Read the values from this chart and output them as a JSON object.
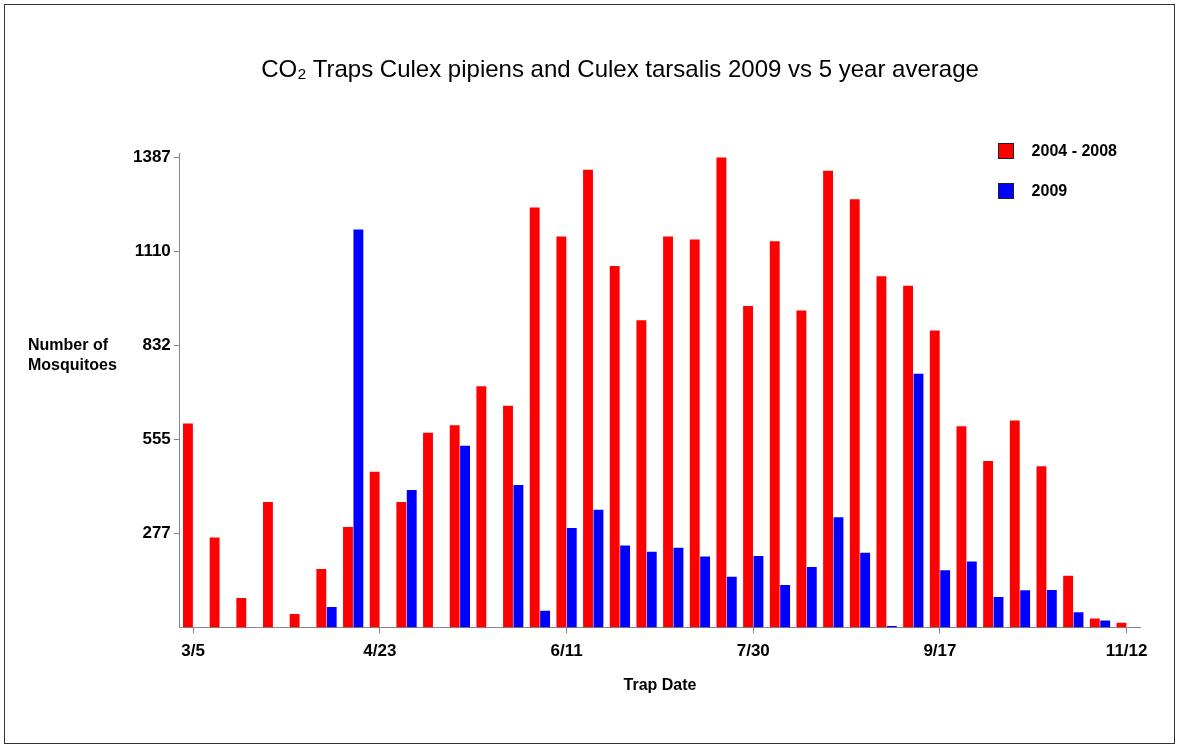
{
  "chart_data": {
    "type": "bar",
    "title": "CO₂ Traps Culex pipiens and Culex tarsalis 2009 vs 5 year average",
    "xlabel": "Trap Date",
    "ylabel": "Number of Mosquitoes",
    "categories": [
      "3/5",
      null,
      null,
      null,
      null,
      null,
      null,
      "4/23",
      null,
      null,
      null,
      null,
      null,
      null,
      "6/11",
      null,
      null,
      null,
      null,
      null,
      null,
      "7/30",
      null,
      null,
      null,
      null,
      null,
      null,
      "9/17",
      null,
      null,
      null,
      null,
      null,
      null,
      "11/12"
    ],
    "series": [
      {
        "name": "2004 - 2008",
        "color": "#ff0000",
        "values": [
          602,
          266,
          87,
          371,
          40,
          173,
          297,
          460,
          371,
          575,
          597,
          712,
          655,
          1240,
          1154,
          1351,
          1067,
          907,
          1154,
          1145,
          1387,
          949,
          1140,
          936,
          1348,
          1264,
          1037,
          1009,
          877,
          594,
          492,
          611,
          476,
          153,
          27,
          14
        ]
      },
      {
        "name": "2009",
        "color": "#0000ff",
        "values": [
          null,
          null,
          null,
          null,
          null,
          61,
          1175,
          null,
          406,
          null,
          537,
          null,
          421,
          50,
          294,
          348,
          242,
          224,
          236,
          210,
          150,
          211,
          126,
          179,
          326,
          221,
          5,
          749,
          169,
          195,
          90,
          110,
          111,
          45,
          21,
          null
        ]
      }
    ],
    "ylim": [
      0,
      1400
    ],
    "yticks": [
      277,
      555,
      832,
      1110,
      1387
    ],
    "grid": false,
    "legend": "top right"
  }
}
